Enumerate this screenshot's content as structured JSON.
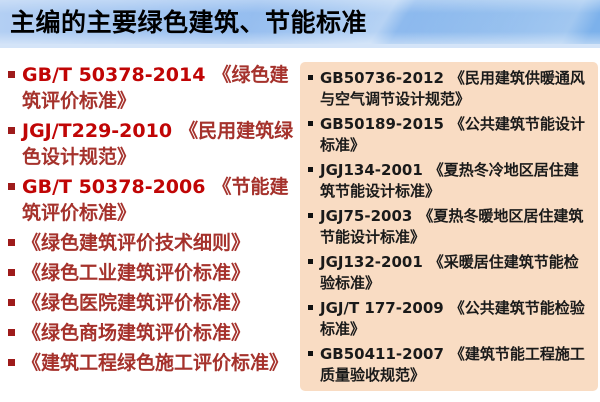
{
  "title": "主编的主要绿色建筑、节能标准",
  "left_list": {
    "items": [
      {
        "code": "GB/T 50378-2014",
        "name": "《绿色建筑评价标准》"
      },
      {
        "code": "JGJ/T229-2010",
        "name": "《民用建筑绿色设计规范》"
      },
      {
        "code": "GB/T 50378-2006",
        "name": "《节能建筑评价标准》"
      },
      {
        "code": "",
        "name": "《绿色建筑评价技术细则》"
      },
      {
        "code": "",
        "name": "《绿色工业建筑评价标准》"
      },
      {
        "code": "",
        "name": "《绿色医院建筑评价标准》"
      },
      {
        "code": "",
        "name": "《绿色商场建筑评价标准》"
      },
      {
        "code": "",
        "name": "《建筑工程绿色施工评价标准》"
      }
    ]
  },
  "right_panel": {
    "items": [
      {
        "code": "GB50736-2012",
        "name": "《民用建筑供暖通风与空气调节设计规范》"
      },
      {
        "code": "GB50189-2015",
        "name": "《公共建筑节能设计标准》"
      },
      {
        "code": "JGJ134-2001",
        "name": "《夏热冬冷地区居住建筑节能设计标准》"
      },
      {
        "code": "JGJ75-2003",
        "name": "《夏热冬暖地区居住建筑节能设计标准》"
      },
      {
        "code": "JGJ132-2001",
        "name": "《采暖居住建筑节能检验标准》"
      },
      {
        "code": "JGJ/T 177-2009",
        "name": "《公共建筑节能检验标准》"
      },
      {
        "code": "GB50411-2007",
        "name": "《建筑节能工程施工质量验收规范》"
      }
    ]
  },
  "colors": {
    "banner_blue_left": "#b3cff3",
    "banner_blue_right": "#77aeea",
    "banner_bottom_strip": "#d4e4f8",
    "left_code_red": "#c00505",
    "left_name_red": "#a5322c",
    "left_bullet_red": "#9e1b1b",
    "right_panel_bg": "#f9dcc3",
    "right_text": "#1a1a1a"
  }
}
